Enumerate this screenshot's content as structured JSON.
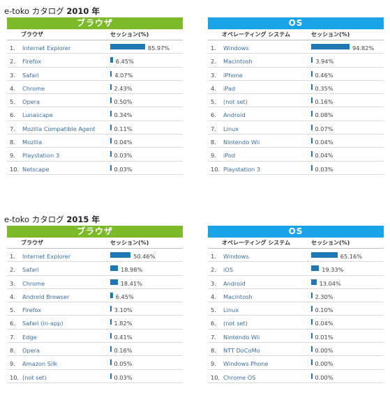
{
  "sections": [
    {
      "title_prefix": "e-toko カタログ ",
      "title_year": "2010 年",
      "left": {
        "header": "ブラウザ",
        "col1": "ブラウザ",
        "col2": "セッション(%)",
        "rows": [
          {
            "num": "1.",
            "name": "Internet Explorer",
            "pct": "85.97%",
            "value": 85.97
          },
          {
            "num": "2.",
            "name": "Firefox",
            "pct": "6.45%",
            "value": 6.45
          },
          {
            "num": "3.",
            "name": "Safari",
            "pct": "4.07%",
            "value": 4.07
          },
          {
            "num": "4.",
            "name": "Chrome",
            "pct": "2.43%",
            "value": 2.43
          },
          {
            "num": "5.",
            "name": "Opera",
            "pct": "0.50%",
            "value": 0.5
          },
          {
            "num": "6.",
            "name": "Lunascape",
            "pct": "0.34%",
            "value": 0.34
          },
          {
            "num": "7.",
            "name": "Mozilla Compatible Agent",
            "pct": "0.11%",
            "value": 0.11
          },
          {
            "num": "8.",
            "name": "Mozilla",
            "pct": "0.04%",
            "value": 0.04
          },
          {
            "num": "9.",
            "name": "Playstation 3",
            "pct": "0.03%",
            "value": 0.03
          },
          {
            "num": "10.",
            "name": "Netscape",
            "pct": "0.03%",
            "value": 0.03
          }
        ]
      },
      "right": {
        "header": "OS",
        "col1": "オペレーティング システム",
        "col2": "セッション(%)",
        "rows": [
          {
            "num": "1.",
            "name": "Windows",
            "pct": "94.82%",
            "value": 94.82
          },
          {
            "num": "2.",
            "name": "Macintosh",
            "pct": "3.94%",
            "value": 3.94
          },
          {
            "num": "3.",
            "name": "iPhone",
            "pct": "0.46%",
            "value": 0.46
          },
          {
            "num": "4.",
            "name": "iPad",
            "pct": "0.35%",
            "value": 0.35
          },
          {
            "num": "5.",
            "name": "(not set)",
            "pct": "0.16%",
            "value": 0.16
          },
          {
            "num": "6.",
            "name": "Android",
            "pct": "0.08%",
            "value": 0.08
          },
          {
            "num": "7.",
            "name": "Linux",
            "pct": "0.07%",
            "value": 0.07
          },
          {
            "num": "8.",
            "name": "Nintendo Wii",
            "pct": "0.04%",
            "value": 0.04
          },
          {
            "num": "9.",
            "name": "iPod",
            "pct": "0.04%",
            "value": 0.04
          },
          {
            "num": "10.",
            "name": "Playstation 3",
            "pct": "0.03%",
            "value": 0.03
          }
        ]
      }
    },
    {
      "title_prefix": "e-toko カタログ ",
      "title_year": "2015 年",
      "left": {
        "header": "ブラウザ",
        "col1": "ブラウザ",
        "col2": "セッション(%)",
        "rows": [
          {
            "num": "1.",
            "name": "Internet Explorer",
            "pct": "50.46%",
            "value": 50.46
          },
          {
            "num": "2.",
            "name": "Safari",
            "pct": "18.98%",
            "value": 18.98
          },
          {
            "num": "3.",
            "name": "Chrome",
            "pct": "18.41%",
            "value": 18.41
          },
          {
            "num": "4.",
            "name": "Android Browser",
            "pct": "6.45%",
            "value": 6.45
          },
          {
            "num": "5.",
            "name": "Firefox",
            "pct": "3.10%",
            "value": 3.1
          },
          {
            "num": "6.",
            "name": "Safari (in-app)",
            "pct": "1.82%",
            "value": 1.82
          },
          {
            "num": "7.",
            "name": "Edge",
            "pct": "0.41%",
            "value": 0.41
          },
          {
            "num": "8.",
            "name": "Opera",
            "pct": "0.16%",
            "value": 0.16
          },
          {
            "num": "9.",
            "name": "Amazon Silk",
            "pct": "0.05%",
            "value": 0.05
          },
          {
            "num": "10.",
            "name": "(not set)",
            "pct": "0.03%",
            "value": 0.03
          }
        ]
      },
      "right": {
        "header": "OS",
        "col1": "オペレーティング システム",
        "col2": "セッション(%)",
        "rows": [
          {
            "num": "1.",
            "name": "Windows",
            "pct": "65.16%",
            "value": 65.16
          },
          {
            "num": "2.",
            "name": "iOS",
            "pct": "19.33%",
            "value": 19.33
          },
          {
            "num": "3.",
            "name": "Android",
            "pct": "13.04%",
            "value": 13.04
          },
          {
            "num": "4.",
            "name": "Macintosh",
            "pct": "2.30%",
            "value": 2.3
          },
          {
            "num": "5.",
            "name": "Linux",
            "pct": "0.10%",
            "value": 0.1
          },
          {
            "num": "6.",
            "name": "(not set)",
            "pct": "0.04%",
            "value": 0.04
          },
          {
            "num": "7.",
            "name": "Nintendo Wii",
            "pct": "0.01%",
            "value": 0.01
          },
          {
            "num": "8.",
            "name": "NTT DoCoMo",
            "pct": "0.00%",
            "value": 0.0
          },
          {
            "num": "9.",
            "name": "Windows Phone",
            "pct": "0.00%",
            "value": 0.0
          },
          {
            "num": "10.",
            "name": "Chrome OS",
            "pct": "0.00%",
            "value": 0.0
          }
        ]
      }
    }
  ],
  "colors": {
    "browser_header": "#7cba2a",
    "os_header": "#1ba3e8",
    "bar": "#1f77b4",
    "link": "#3a6ea5"
  }
}
